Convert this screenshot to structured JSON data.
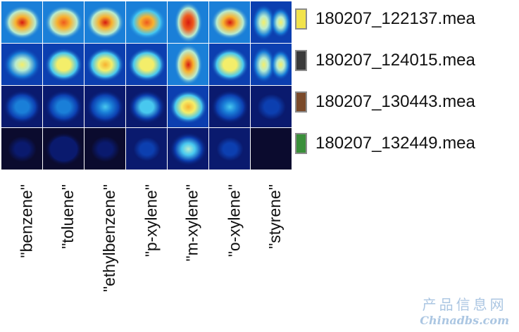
{
  "chart_data": {
    "type": "heatmap",
    "columns": [
      "\"benzene\"",
      "\"toluene\"",
      "\"ethylbenzene\"",
      "\"p-xylene\"",
      "\"m-xylene\"",
      "\"o-xylene\"",
      "\"styrene\""
    ],
    "rows": [
      "180207_122137.mea",
      "180207_124015.mea",
      "180207_130443.mea",
      "180207_132449.mea"
    ],
    "legend": [
      {
        "label": "180207_122137.mea",
        "color": "#f2e34c"
      },
      {
        "label": "180207_124015.mea",
        "color": "#3a3a3a"
      },
      {
        "label": "180207_130443.mea",
        "color": "#7a4a2a"
      },
      {
        "label": "180207_132449.mea",
        "color": "#3a8f3a"
      }
    ],
    "intensity": [
      [
        0.95,
        0.92,
        0.95,
        0.9,
        1.0,
        0.95,
        0.7
      ],
      [
        0.7,
        0.72,
        0.78,
        0.72,
        0.95,
        0.72,
        0.62
      ],
      [
        0.38,
        0.38,
        0.45,
        0.48,
        0.82,
        0.4,
        0.22
      ],
      [
        0.08,
        0.14,
        0.1,
        0.22,
        0.5,
        0.26,
        0.05
      ]
    ],
    "blob_shape": [
      [
        "round",
        "round",
        "round",
        "round",
        "tall",
        "round",
        "double"
      ],
      [
        "round",
        "round",
        "round",
        "round",
        "tall",
        "round",
        "double"
      ],
      [
        "round",
        "round",
        "round",
        "round",
        "round",
        "round",
        "flat"
      ],
      [
        "flat",
        "round",
        "flat",
        "round",
        "round",
        "round",
        "flat"
      ]
    ]
  },
  "watermark": {
    "line1": "产品信息网",
    "line2": "Chinadbs.com"
  }
}
